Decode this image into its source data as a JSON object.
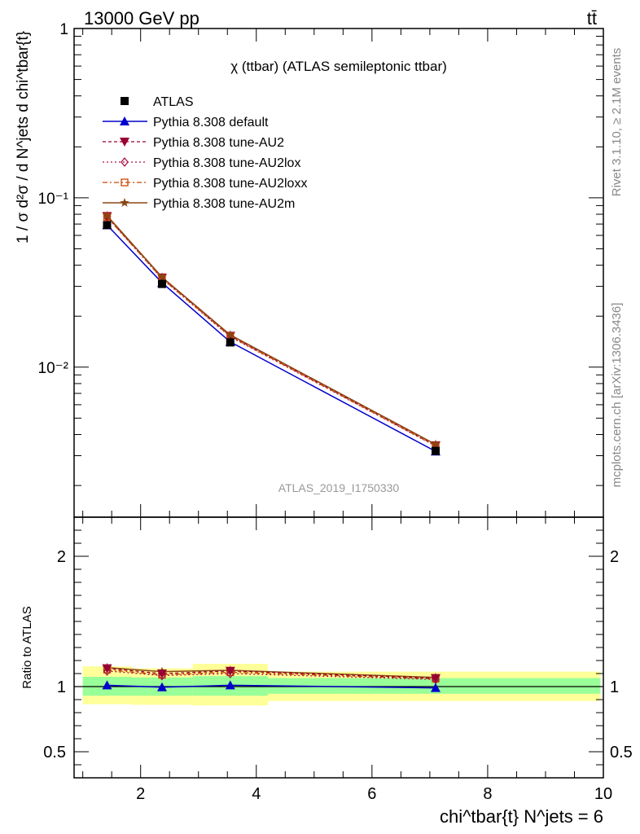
{
  "header": {
    "energy_label": "13000 GeV pp",
    "process_label": "tt̄",
    "right_side_top": "Rivet 3.1.10, ≥ 2.1M events",
    "right_side_bottom": "mcplots.cern.ch [arXiv:1306.3436]",
    "analysis_id": "ATLAS_2019_I1750330"
  },
  "colors": {
    "atlas": "#000000",
    "default": "#0000cc",
    "au2": "#990033",
    "au2lox": "#aa1144",
    "au2loxx": "#cc4400",
    "au2m": "#8b4513",
    "band_outer": "#ffff99",
    "band_inner": "#99ff99"
  },
  "chart_data": [
    {
      "type": "line",
      "panel": "main",
      "title": "χ (ttbar) (ATLAS semileptonic ttbar)",
      "ylabel": "1 / σ d²σ / d N^jets d chi^tbar{t}",
      "yscale": "log",
      "ylim": [
        0.0013,
        1
      ],
      "xlim": [
        0.85,
        10
      ],
      "ytick_labels": [
        "1",
        "10⁻¹",
        "10⁻²"
      ],
      "x": [
        1.42,
        2.37,
        3.55,
        7.1
      ],
      "series": [
        {
          "name": "ATLAS",
          "key": "atlas",
          "marker": "square",
          "values": [
            0.069,
            0.031,
            0.014,
            0.0032
          ]
        },
        {
          "name": "Pythia 8.308 default",
          "key": "default",
          "marker": "triangle-up",
          "values": [
            0.069,
            0.0315,
            0.0141,
            0.00318
          ]
        },
        {
          "name": "Pythia 8.308 tune-AU2",
          "key": "au2",
          "marker": "triangle-down",
          "values": [
            0.078,
            0.0338,
            0.0153,
            0.00345
          ]
        },
        {
          "name": "Pythia 8.308 tune-AU2lox",
          "key": "au2lox",
          "marker": "diamond",
          "values": [
            0.077,
            0.0333,
            0.0151,
            0.00342
          ]
        },
        {
          "name": "Pythia 8.308 tune-AU2loxx",
          "key": "au2loxx",
          "marker": "open-square",
          "values": [
            0.077,
            0.0334,
            0.0152,
            0.00343
          ]
        },
        {
          "name": "Pythia 8.308 tune-AU2m",
          "key": "au2m",
          "marker": "star",
          "values": [
            0.0785,
            0.034,
            0.0155,
            0.0035
          ]
        }
      ]
    },
    {
      "type": "line",
      "panel": "ratio",
      "ylabel": "Ratio to ATLAS",
      "xlabel": "chi^tbar{t} N^jets = 6",
      "ylim": [
        0.3,
        2.3
      ],
      "xlim": [
        0.85,
        10
      ],
      "xtick_labels": [
        "2",
        "4",
        "6",
        "8",
        "10"
      ],
      "ytick_labels": [
        "0.5",
        "1",
        "2"
      ],
      "x": [
        1.42,
        2.37,
        3.55,
        7.1
      ],
      "bands": [
        {
          "x_lo": 1.0,
          "x_hi": 1.85,
          "outer": [
            0.865,
            1.155
          ],
          "inner": [
            0.93,
            1.075
          ]
        },
        {
          "x_lo": 1.85,
          "x_hi": 2.9,
          "outer": [
            0.86,
            1.14
          ],
          "inner": [
            0.93,
            1.07
          ]
        },
        {
          "x_lo": 2.9,
          "x_hi": 4.2,
          "outer": [
            0.855,
            1.175
          ],
          "inner": [
            0.93,
            1.08
          ]
        },
        {
          "x_lo": 4.2,
          "x_hi": 9.95,
          "outer": [
            0.89,
            1.115
          ],
          "inner": [
            0.945,
            1.065
          ]
        }
      ],
      "series": [
        {
          "name": "Pythia 8.308 default",
          "key": "default",
          "marker": "triangle-up",
          "values": [
            1.01,
            0.995,
            1.01,
            0.99
          ]
        },
        {
          "name": "Pythia 8.308 tune-AU2",
          "key": "au2",
          "marker": "triangle-down",
          "values": [
            1.14,
            1.1,
            1.12,
            1.065
          ]
        },
        {
          "name": "Pythia 8.308 tune-AU2lox",
          "key": "au2lox",
          "marker": "diamond",
          "values": [
            1.12,
            1.085,
            1.1,
            1.055
          ]
        },
        {
          "name": "Pythia 8.308 tune-AU2loxx",
          "key": "au2loxx",
          "marker": "open-square",
          "values": [
            1.13,
            1.09,
            1.11,
            1.06
          ]
        },
        {
          "name": "Pythia 8.308 tune-AU2m",
          "key": "au2m",
          "marker": "star",
          "values": [
            1.145,
            1.115,
            1.125,
            1.07
          ]
        }
      ]
    }
  ]
}
